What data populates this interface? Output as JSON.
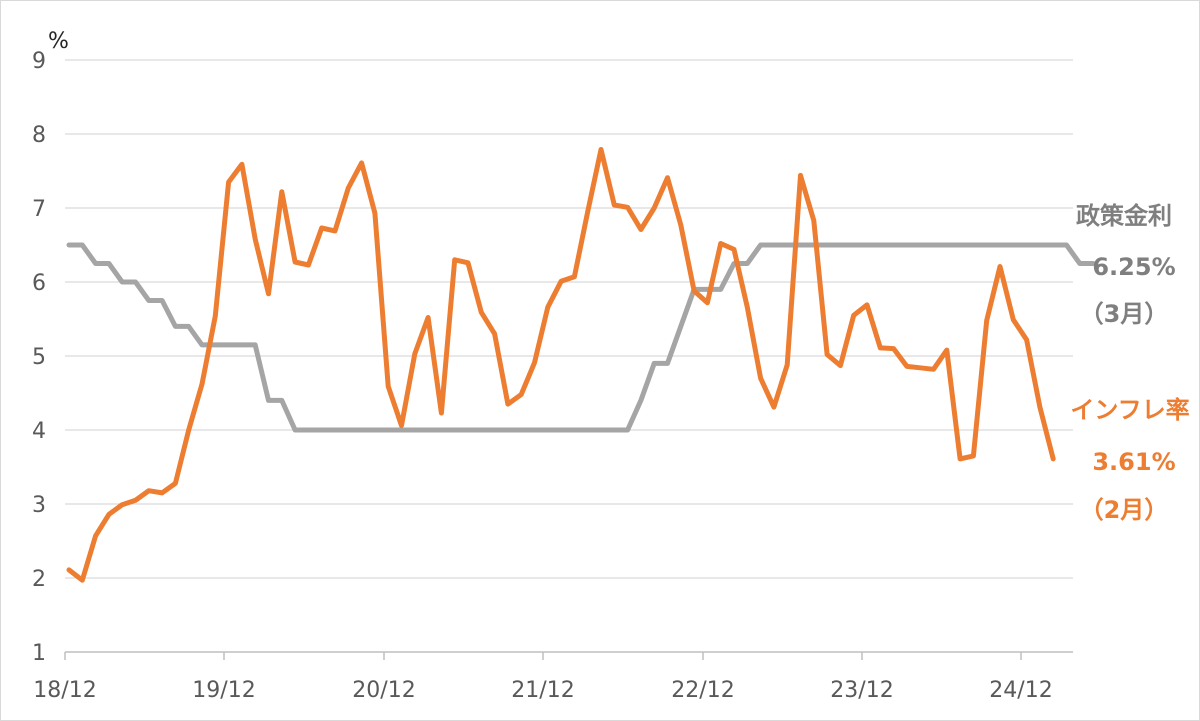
{
  "chart_data": {
    "type": "line",
    "unit_label": "%",
    "x_tick_labels": [
      "18/12",
      "19/12",
      "20/12",
      "21/12",
      "22/12",
      "23/12",
      "24/12"
    ],
    "ylim": [
      1,
      9
    ],
    "y_ticks": [
      "1",
      "2",
      "3",
      "4",
      "5",
      "6",
      "7",
      "8",
      "9"
    ],
    "grid": true,
    "colors": {
      "policy_rate": "#a5a5a5",
      "inflation": "#ed7d31"
    },
    "series": [
      {
        "name": "政策金利",
        "key": "policy_rate",
        "latest_value": "6.25%",
        "latest_month": "（3月）",
        "values": [
          6.5,
          6.5,
          6.25,
          6.25,
          6.0,
          6.0,
          5.75,
          5.75,
          5.4,
          5.4,
          5.15,
          5.15,
          5.15,
          5.15,
          5.15,
          4.4,
          4.4,
          4.0,
          4.0,
          4.0,
          4.0,
          4.0,
          4.0,
          4.0,
          4.0,
          4.0,
          4.0,
          4.0,
          4.0,
          4.0,
          4.0,
          4.0,
          4.0,
          4.0,
          4.0,
          4.0,
          4.0,
          4.0,
          4.0,
          4.0,
          4.0,
          4.0,
          4.0,
          4.4,
          4.9,
          4.9,
          5.4,
          5.9,
          5.9,
          5.9,
          6.25,
          6.25,
          6.5,
          6.5,
          6.5,
          6.5,
          6.5,
          6.5,
          6.5,
          6.5,
          6.5,
          6.5,
          6.5,
          6.5,
          6.5,
          6.5,
          6.5,
          6.5,
          6.5,
          6.5,
          6.5,
          6.5,
          6.5,
          6.5,
          6.5,
          6.5,
          6.25,
          6.25
        ]
      },
      {
        "name": "インフレ率",
        "key": "inflation",
        "latest_value": "3.61%",
        "latest_month": "（2月）",
        "values": [
          2.11,
          1.97,
          2.57,
          2.86,
          2.99,
          3.05,
          3.18,
          3.15,
          3.28,
          4.0,
          4.62,
          5.54,
          7.35,
          7.59,
          6.58,
          5.84,
          7.22,
          6.27,
          6.23,
          6.73,
          6.69,
          7.27,
          7.61,
          6.93,
          4.59,
          4.06,
          5.03,
          5.52,
          4.23,
          6.3,
          6.26,
          5.59,
          5.3,
          4.35,
          4.48,
          4.91,
          5.66,
          6.01,
          6.07,
          6.95,
          7.79,
          7.04,
          7.01,
          6.71,
          7.0,
          7.41,
          6.77,
          5.88,
          5.72,
          6.52,
          6.44,
          5.66,
          4.7,
          4.31,
          4.88,
          7.44,
          6.83,
          5.02,
          4.87,
          5.55,
          5.69,
          5.11,
          5.1,
          4.86,
          4.84,
          4.82,
          5.08,
          3.61,
          3.65,
          5.48,
          6.21,
          5.49,
          5.22,
          4.31,
          3.61
        ]
      }
    ]
  }
}
